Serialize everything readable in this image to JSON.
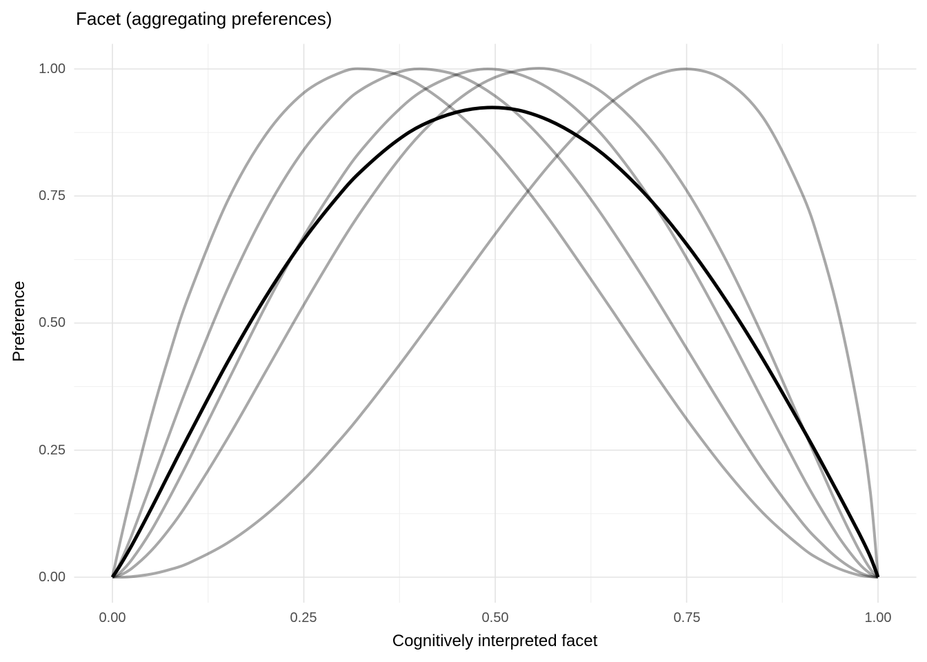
{
  "chart_data": {
    "type": "line",
    "title": "Facet (aggregating preferences)",
    "xlabel": "Cognitively interpreted facet",
    "ylabel": "Preference",
    "xlim": [
      0,
      1
    ],
    "ylim": [
      0,
      1
    ],
    "grid": "major+minor",
    "legend": "none",
    "x_tick_labels": [
      "0.00",
      "0.25",
      "0.50",
      "0.75",
      "1.00"
    ],
    "y_tick_labels": [
      "0.00",
      "0.25",
      "0.50",
      "0.75",
      "1.00"
    ],
    "x_tick_values": [
      0,
      0.25,
      0.5,
      0.75,
      1
    ],
    "y_tick_values": [
      0,
      0.25,
      0.5,
      0.75,
      1
    ],
    "x_minor_tick_values": [
      0.125,
      0.375,
      0.625,
      0.875
    ],
    "y_minor_tick_values": [
      0.125,
      0.375,
      0.625,
      0.875
    ],
    "colors": {
      "background": "#ffffff",
      "grid_major": "#e3e3e3",
      "grid_minor": "#efefef",
      "axis_text": "#4d4d4d",
      "title_text": "#000000",
      "individual_curve": "rgba(0,0,0,0.34)",
      "aggregate_curve": "#000000"
    },
    "x": [
      0,
      0.01,
      0.025,
      0.05,
      0.075,
      0.1,
      0.15,
      0.2,
      0.25,
      0.3,
      0.33,
      0.37,
      0.405,
      0.45,
      0.49,
      0.53,
      0.57,
      0.61,
      0.65,
      0.7,
      0.75,
      0.8,
      0.85,
      0.9,
      0.925,
      0.95,
      0.975,
      0.99,
      1
    ],
    "series": [
      {
        "name": "individual-preference-1",
        "role": "individual",
        "peak_x": 0.33,
        "peak_y": 1.0,
        "color": "rgba(0,0,0,0.34)",
        "width": 4,
        "values": [
          0,
          0.069,
          0.165,
          0.312,
          0.441,
          0.555,
          0.739,
          0.87,
          0.953,
          0.994,
          1,
          0.99,
          0.965,
          0.914,
          0.855,
          0.784,
          0.705,
          0.619,
          0.531,
          0.419,
          0.311,
          0.212,
          0.126,
          0.059,
          0.034,
          0.016,
          0.004,
          0.001,
          0
        ]
      },
      {
        "name": "individual-preference-2",
        "role": "individual",
        "peak_x": 0.405,
        "peak_y": 1.0,
        "color": "rgba(0,0,0,0.34)",
        "width": 4,
        "values": [
          0,
          0.028,
          0.082,
          0.182,
          0.284,
          0.383,
          0.566,
          0.72,
          0.841,
          0.928,
          0.964,
          0.992,
          1,
          0.988,
          0.957,
          0.91,
          0.848,
          0.774,
          0.689,
          0.573,
          0.45,
          0.327,
          0.21,
          0.109,
          0.068,
          0.034,
          0.01,
          0.002,
          0
        ]
      },
      {
        "name": "individual-preference-3",
        "role": "individual",
        "peak_x": 0.49,
        "peak_y": 1.0,
        "color": "rgba(0,0,0,0.34)",
        "width": 4,
        "values": [
          0,
          0.009,
          0.034,
          0.09,
          0.158,
          0.231,
          0.383,
          0.533,
          0.671,
          0.789,
          0.849,
          0.914,
          0.957,
          0.989,
          1,
          0.99,
          0.962,
          0.915,
          0.852,
          0.75,
          0.628,
          0.491,
          0.346,
          0.202,
          0.136,
          0.076,
          0.027,
          0.007,
          0
        ]
      },
      {
        "name": "individual-preference-4",
        "role": "individual",
        "peak_x": 0.55,
        "peak_y": 1.0,
        "color": "rgba(0,0,0,0.34)",
        "width": 4,
        "values": [
          0,
          0.004,
          0.017,
          0.051,
          0.096,
          0.15,
          0.272,
          0.404,
          0.536,
          0.662,
          0.731,
          0.814,
          0.876,
          0.938,
          0.977,
          0.997,
          1,
          0.98,
          0.942,
          0.866,
          0.761,
          0.628,
          0.472,
          0.301,
          0.214,
          0.13,
          0.054,
          0.016,
          0
        ]
      },
      {
        "name": "individual-preference-5",
        "role": "individual",
        "peak_x": 0.75,
        "peak_y": 1.0,
        "color": "rgba(0,0,0,0.34)",
        "width": 4,
        "values": [
          0,
          0,
          0.001,
          0.006,
          0.015,
          0.028,
          0.067,
          0.122,
          0.192,
          0.275,
          0.33,
          0.408,
          0.479,
          0.572,
          0.655,
          0.735,
          0.81,
          0.877,
          0.933,
          0.982,
          1,
          0.978,
          0.904,
          0.758,
          0.65,
          0.509,
          0.321,
          0.167,
          0
        ]
      },
      {
        "name": "aggregated-preference",
        "role": "aggregate",
        "peak_x": 0.49,
        "peak_y": 0.93,
        "color": "#000000",
        "width": 5,
        "values": [
          0,
          0.023,
          0.062,
          0.133,
          0.207,
          0.28,
          0.422,
          0.551,
          0.664,
          0.759,
          0.806,
          0.857,
          0.89,
          0.915,
          0.924,
          0.919,
          0.899,
          0.866,
          0.821,
          0.747,
          0.655,
          0.548,
          0.428,
          0.297,
          0.229,
          0.159,
          0.087,
          0.04,
          0
        ]
      }
    ]
  }
}
